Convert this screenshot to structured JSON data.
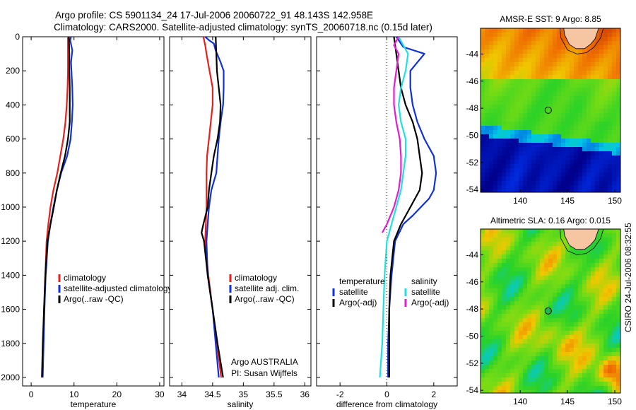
{
  "header": {
    "line1": "Argo profile: CS 5901134_24 17-Jul-2006 20060722_91 48.143S 142.958E",
    "line2": "Climatology: CARS2000. Satellite-adjusted climatology: synTS_20060718.nc (0.15d later)"
  },
  "colors": {
    "climatology": "#e8201c",
    "satellite": "#1030d8",
    "argo": "#000000",
    "satellite_salinity": "#20e0e0",
    "argo_salinity": "#e020d0"
  },
  "chart_data": [
    {
      "type": "line",
      "xlabel": "temperature",
      "xlim": [
        -2,
        31
      ],
      "ylim": [
        2050,
        0
      ],
      "xticks": [
        0,
        10,
        20,
        30
      ],
      "yticks": [
        0,
        200,
        400,
        600,
        800,
        1000,
        1200,
        1400,
        1600,
        1800,
        2000
      ],
      "legend": {
        "placement": "lower-right",
        "entries": [
          "climatology",
          "satellite-adjusted climatology",
          "Argo(..raw -QC)"
        ]
      },
      "series": [
        {
          "name": "climatology",
          "color_key": "climatology",
          "points": [
            [
              8.6,
              0
            ],
            [
              8.6,
              100
            ],
            [
              8.6,
              200
            ],
            [
              8.5,
              300
            ],
            [
              8.3,
              400
            ],
            [
              8.0,
              500
            ],
            [
              7.5,
              600
            ],
            [
              6.8,
              700
            ],
            [
              6.1,
              800
            ],
            [
              5.2,
              900
            ],
            [
              4.5,
              1000
            ],
            [
              4.0,
              1100
            ],
            [
              3.6,
              1200
            ],
            [
              3.3,
              1400
            ],
            [
              3.0,
              1600
            ],
            [
              2.8,
              1800
            ],
            [
              2.6,
              2000
            ]
          ]
        },
        {
          "name": "satellite-adjusted climatology",
          "color_key": "satellite",
          "points": [
            [
              9.3,
              0
            ],
            [
              9.1,
              20
            ],
            [
              9.6,
              80
            ],
            [
              9.3,
              150
            ],
            [
              9.6,
              300
            ],
            [
              9.7,
              400
            ],
            [
              9.5,
              500
            ],
            [
              9.2,
              600
            ],
            [
              8.4,
              700
            ],
            [
              7.0,
              800
            ],
            [
              6.0,
              900
            ],
            [
              5.2,
              1000
            ],
            [
              4.5,
              1100
            ],
            [
              3.9,
              1200
            ],
            [
              3.4,
              1400
            ],
            [
              3.1,
              1600
            ],
            [
              2.9,
              1800
            ],
            [
              2.7,
              2000
            ]
          ]
        },
        {
          "name": "Argo(..raw -QC)",
          "color_key": "argo",
          "points": [
            [
              8.8,
              0
            ],
            [
              8.9,
              100
            ],
            [
              8.9,
              200
            ],
            [
              9.0,
              300
            ],
            [
              9.0,
              400
            ],
            [
              9.0,
              500
            ],
            [
              8.6,
              600
            ],
            [
              7.9,
              700
            ],
            [
              6.9,
              800
            ],
            [
              6.0,
              900
            ],
            [
              5.3,
              1000
            ],
            [
              4.5,
              1100
            ],
            [
              3.8,
              1200
            ],
            [
              3.3,
              1400
            ],
            [
              3.0,
              1600
            ],
            [
              2.7,
              1800
            ],
            [
              2.5,
              2000
            ]
          ]
        }
      ]
    },
    {
      "type": "line",
      "xlabel": "salinity",
      "xlim": [
        33.8,
        36.1
      ],
      "ylim": [
        2050,
        0
      ],
      "xticks": [
        34,
        34.5,
        35,
        35.5,
        36
      ],
      "legend": {
        "placement": "lower-right",
        "entries": [
          "climatology",
          "satellite adj. clim.",
          "Argo(..raw -QC)"
        ]
      },
      "annotations": [
        "Argo AUSTRALIA",
        "PI: Susan Wijffels"
      ],
      "series": [
        {
          "name": "climatology",
          "color_key": "climatology",
          "points": [
            [
              34.35,
              0
            ],
            [
              34.38,
              50
            ],
            [
              34.4,
              100
            ],
            [
              34.45,
              200
            ],
            [
              34.5,
              300
            ],
            [
              34.5,
              400
            ],
            [
              34.47,
              500
            ],
            [
              34.44,
              600
            ],
            [
              34.41,
              700
            ],
            [
              34.4,
              800
            ],
            [
              34.4,
              900
            ],
            [
              34.4,
              1000
            ],
            [
              34.39,
              1100
            ],
            [
              34.38,
              1200
            ],
            [
              34.43,
              1400
            ],
            [
              34.5,
              1600
            ],
            [
              34.57,
              1800
            ],
            [
              34.64,
              2000
            ]
          ]
        },
        {
          "name": "satellite adj. clim.",
          "color_key": "satellite",
          "points": [
            [
              34.38,
              0
            ],
            [
              34.44,
              20
            ],
            [
              34.52,
              40
            ],
            [
              34.55,
              80
            ],
            [
              34.63,
              150
            ],
            [
              34.68,
              200
            ],
            [
              34.68,
              300
            ],
            [
              34.67,
              400
            ],
            [
              34.63,
              500
            ],
            [
              34.6,
              600
            ],
            [
              34.58,
              700
            ],
            [
              34.56,
              800
            ],
            [
              34.48,
              900
            ],
            [
              34.44,
              1000
            ],
            [
              34.42,
              1100
            ],
            [
              34.4,
              1200
            ],
            [
              34.42,
              1400
            ],
            [
              34.5,
              1600
            ],
            [
              34.55,
              1800
            ],
            [
              34.6,
              2000
            ]
          ]
        },
        {
          "name": "Argo(..raw -QC)",
          "color_key": "argo",
          "points": [
            [
              34.55,
              0
            ],
            [
              34.56,
              100
            ],
            [
              34.57,
              200
            ],
            [
              34.6,
              300
            ],
            [
              34.63,
              400
            ],
            [
              34.62,
              500
            ],
            [
              34.58,
              600
            ],
            [
              34.52,
              700
            ],
            [
              34.48,
              800
            ],
            [
              34.44,
              900
            ],
            [
              34.42,
              1000
            ],
            [
              34.35,
              1100
            ],
            [
              34.32,
              1150
            ],
            [
              34.36,
              1200
            ],
            [
              34.42,
              1400
            ],
            [
              34.5,
              1600
            ],
            [
              34.58,
              1800
            ],
            [
              34.67,
              2000
            ]
          ]
        }
      ]
    },
    {
      "type": "line",
      "xlabel": "difference from climatology",
      "xlim": [
        -3.0,
        3.0
      ],
      "ylim": [
        2050,
        0
      ],
      "xticks": [
        -2,
        0,
        2
      ],
      "reference_line": 0,
      "legend": {
        "placement": "lower",
        "columns": [
          {
            "title": "temperature",
            "entries": [
              "satellite",
              "Argo(-adj)"
            ]
          },
          {
            "title": "salinity",
            "entries": [
              "satellite",
              "Argo(-adj)"
            ]
          }
        ]
      },
      "series": [
        {
          "name": "temperature satellite",
          "color_key": "satellite",
          "points": [
            [
              0.4,
              0
            ],
            [
              0.7,
              60
            ],
            [
              1.6,
              100
            ],
            [
              1.0,
              200
            ],
            [
              1.0,
              300
            ],
            [
              1.1,
              400
            ],
            [
              1.3,
              500
            ],
            [
              1.6,
              600
            ],
            [
              2.0,
              700
            ],
            [
              2.1,
              800
            ],
            [
              2.0,
              900
            ],
            [
              1.8,
              950
            ],
            [
              1.1,
              1050
            ],
            [
              0.7,
              1100
            ],
            [
              0.35,
              1200
            ],
            [
              0.2,
              1400
            ],
            [
              0.1,
              1600
            ],
            [
              0.05,
              1800
            ],
            [
              0.05,
              2000
            ]
          ]
        },
        {
          "name": "temperature Argo(-adj)",
          "color_key": "argo",
          "points": [
            [
              0.3,
              0
            ],
            [
              0.4,
              100
            ],
            [
              0.5,
              200
            ],
            [
              0.6,
              300
            ],
            [
              0.8,
              400
            ],
            [
              1.1,
              500
            ],
            [
              1.3,
              600
            ],
            [
              1.4,
              700
            ],
            [
              1.5,
              800
            ],
            [
              1.4,
              900
            ],
            [
              1.0,
              1000
            ],
            [
              0.6,
              1100
            ],
            [
              0.3,
              1200
            ],
            [
              0.15,
              1400
            ],
            [
              0.1,
              1600
            ],
            [
              0.1,
              1800
            ],
            [
              0.1,
              2000
            ]
          ]
        },
        {
          "name": "salinity satellite",
          "color_key": "satellite_salinity",
          "points": [
            [
              0.5,
              0
            ],
            [
              0.7,
              50
            ],
            [
              0.9,
              100
            ],
            [
              0.8,
              200
            ],
            [
              0.6,
              300
            ],
            [
              0.5,
              400
            ],
            [
              0.6,
              500
            ],
            [
              0.8,
              600
            ],
            [
              0.8,
              700
            ],
            [
              0.7,
              800
            ],
            [
              0.6,
              900
            ],
            [
              0.4,
              1000
            ],
            [
              0.2,
              1100
            ],
            [
              0.0,
              1200
            ],
            [
              -0.1,
              1400
            ],
            [
              -0.15,
              1600
            ],
            [
              -0.2,
              1800
            ],
            [
              -0.3,
              2000
            ]
          ]
        },
        {
          "name": "salinity Argo(-adj)",
          "color_key": "argo_salinity",
          "points": [
            [
              0.5,
              0
            ],
            [
              0.3,
              50
            ],
            [
              0.5,
              100
            ],
            [
              0.4,
              200
            ],
            [
              0.3,
              300
            ],
            [
              0.3,
              400
            ],
            [
              0.4,
              500
            ],
            [
              0.55,
              600
            ],
            [
              0.6,
              700
            ],
            [
              0.6,
              800
            ],
            [
              0.5,
              900
            ],
            [
              0.3,
              1000
            ],
            [
              0.0,
              1100
            ],
            [
              -0.2,
              1150
            ]
          ]
        }
      ]
    }
  ],
  "maps": [
    {
      "title": "AMSR-E SST: 9 Argo: 8.85",
      "xlim": [
        135.8,
        150.6
      ],
      "ylim": [
        -54.2,
        -42.1
      ],
      "xticks": [
        140,
        145,
        150
      ],
      "yticks": [
        -44,
        -46,
        -48,
        -50,
        -52,
        -54
      ],
      "marker": {
        "lon": 142.958,
        "lat": -48.143
      },
      "palette": "sst"
    },
    {
      "title": "Altimetric SLA: 0.16 Argo: 0.015",
      "xlim": [
        135.8,
        150.6
      ],
      "ylim": [
        -54.2,
        -42.1
      ],
      "xticks": [
        140,
        145,
        150
      ],
      "yticks": [
        -44,
        -46,
        -48,
        -50,
        -52,
        -54
      ],
      "marker": {
        "lon": 142.958,
        "lat": -48.143
      },
      "palette": "sla"
    }
  ],
  "footer_stamp": "CSIRO 24-Jul-2006 08:32:55"
}
